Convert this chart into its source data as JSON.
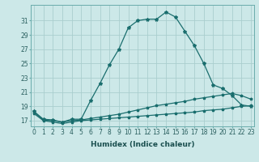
{
  "xlabel": "Humidex (Indice chaleur)",
  "bg_color": "#cce8e8",
  "grid_color": "#aacece",
  "line_color": "#1a6e6e",
  "x_humidex": [
    0,
    1,
    2,
    3,
    4,
    5,
    6,
    7,
    8,
    9,
    10,
    11,
    12,
    13,
    14,
    15,
    16,
    17,
    18,
    19,
    20,
    21,
    22,
    23
  ],
  "series_main": [
    18.3,
    17.2,
    17.1,
    16.8,
    17.2,
    17.2,
    19.8,
    22.2,
    24.8,
    27.0,
    30.0,
    31.0,
    31.2,
    31.2,
    32.2,
    31.5,
    29.5,
    27.5,
    25.0,
    22.0,
    21.5,
    20.5,
    19.2,
    19.0
  ],
  "series_line2": [
    18.2,
    17.1,
    17.0,
    16.8,
    17.0,
    17.1,
    17.3,
    17.5,
    17.7,
    17.9,
    18.2,
    18.5,
    18.8,
    19.1,
    19.3,
    19.5,
    19.7,
    20.0,
    20.2,
    20.4,
    20.6,
    20.8,
    20.5,
    20.0
  ],
  "series_line3": [
    18.0,
    17.0,
    16.8,
    16.6,
    16.8,
    17.0,
    17.1,
    17.2,
    17.3,
    17.4,
    17.5,
    17.6,
    17.7,
    17.8,
    17.9,
    18.0,
    18.1,
    18.2,
    18.4,
    18.5,
    18.6,
    18.8,
    19.0,
    19.1
  ],
  "ylim": [
    16.2,
    33.2
  ],
  "yticks": [
    17,
    19,
    21,
    23,
    25,
    27,
    29,
    31
  ],
  "xlim": [
    -0.3,
    23.3
  ],
  "xtick_fontsize": 5.0,
  "ytick_fontsize": 6.0,
  "xlabel_fontsize": 6.5,
  "lw": 0.9,
  "marker_size_main": 3.0,
  "marker_size_sub": 2.5
}
